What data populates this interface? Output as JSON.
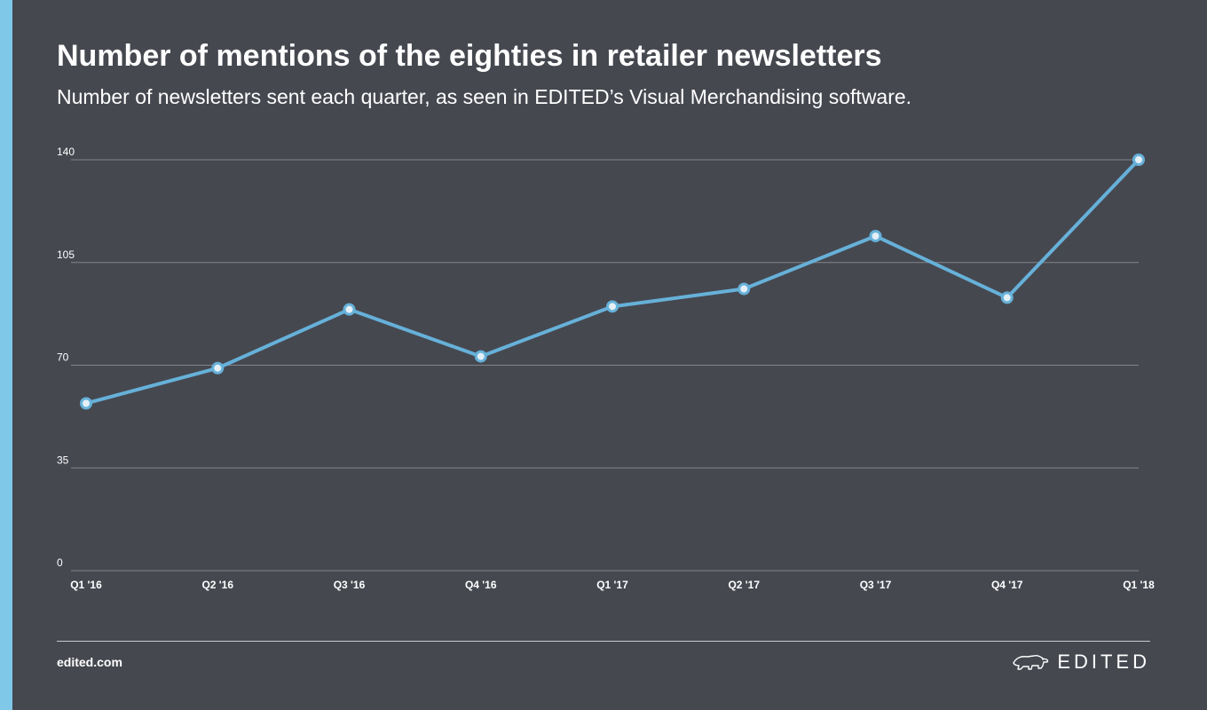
{
  "colors": {
    "background": "#464850",
    "accent_bar": "#7fc8e8",
    "line": "#66b1d9",
    "marker_fill": "#e4eff6",
    "grid": "#83858c",
    "text": "#ffffff"
  },
  "header": {
    "title": "Number of mentions of the eighties in retailer newsletters",
    "subtitle": "Number of newsletters sent each quarter, as seen in EDITED’s Visual Merchandising software."
  },
  "footer": {
    "url": "edited.com",
    "brand": "EDITED",
    "brand_icon": "polar-bear-logo"
  },
  "chart_data": {
    "type": "line",
    "categories": [
      "Q1 '16",
      "Q2 '16",
      "Q3 '16",
      "Q4 '16",
      "Q1 '17",
      "Q2 '17",
      "Q3 '17",
      "Q4 '17",
      "Q1 '18"
    ],
    "values": [
      57,
      69,
      89,
      73,
      90,
      96,
      114,
      93,
      140
    ],
    "ylim": [
      0,
      140
    ],
    "yticks": [
      0,
      35,
      70,
      105,
      140
    ],
    "title": "",
    "xlabel": "",
    "ylabel": "",
    "grid": true,
    "markers": "hollow-circle"
  }
}
